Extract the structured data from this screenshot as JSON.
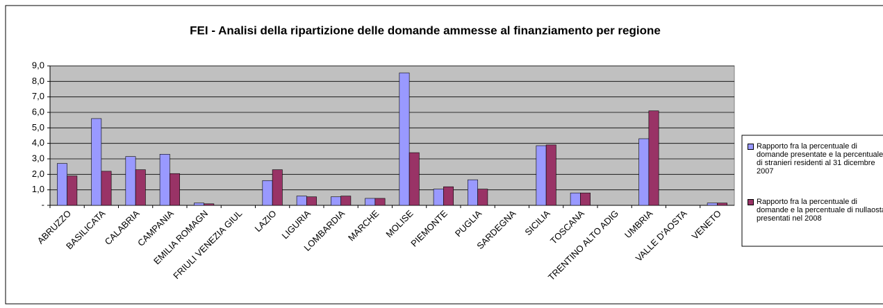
{
  "chart_data": {
    "type": "bar",
    "title": "FEI  - Analisi della ripartizione delle domande ammesse al finanziamento per regione",
    "categories": [
      "ABRUZZO",
      "BASILICATA",
      "CALABRIA",
      "CAMPANIA",
      "EMILIA ROMAGN",
      "FRIULI VENEZIA GIUL",
      "LAZIO",
      "LIGURIA",
      "LOMBARDIA",
      "MARCHE",
      "MOLISE",
      "PIEMONTE",
      "PUGLIA",
      "SARDEGNA",
      "SICILIA",
      "TOSCANA",
      "TRENTINO ALTO ADIG",
      "UMBRIA",
      "VALLE D'AOSTA",
      "VENETO"
    ],
    "series": [
      {
        "name": "Rapporto fra la percentuale di domande presentate e la percentuale di stranieri residenti al 31 dicembre 2007",
        "color": "#9999ff",
        "values": [
          2.7,
          5.6,
          3.15,
          3.3,
          0.15,
          0,
          1.6,
          0.6,
          0.55,
          0.45,
          8.55,
          1.05,
          1.65,
          0,
          3.85,
          0.8,
          0,
          4.3,
          0,
          0.15
        ]
      },
      {
        "name": "Rapporto fra la percentuale di domande e la percentuale di nullaosta presentati nel 2008",
        "color": "#993366",
        "values": [
          1.9,
          2.2,
          2.3,
          2.05,
          0.1,
          0,
          2.3,
          0.55,
          0.6,
          0.45,
          3.4,
          1.2,
          1.05,
          0,
          3.9,
          0.8,
          0,
          6.1,
          0,
          0.15
        ]
      }
    ],
    "ylim": [
      0,
      9
    ],
    "yticks": [
      {
        "value": 0,
        "label": "-"
      },
      {
        "value": 1,
        "label": "1,0"
      },
      {
        "value": 2,
        "label": "2,0"
      },
      {
        "value": 3,
        "label": "3,0"
      },
      {
        "value": 4,
        "label": "4,0"
      },
      {
        "value": 5,
        "label": "5,0"
      },
      {
        "value": 6,
        "label": "6,0"
      },
      {
        "value": 7,
        "label": "7,0"
      },
      {
        "value": 8,
        "label": "8,0"
      },
      {
        "value": 9,
        "label": "9,0"
      }
    ],
    "grid": true,
    "legend": "right"
  }
}
